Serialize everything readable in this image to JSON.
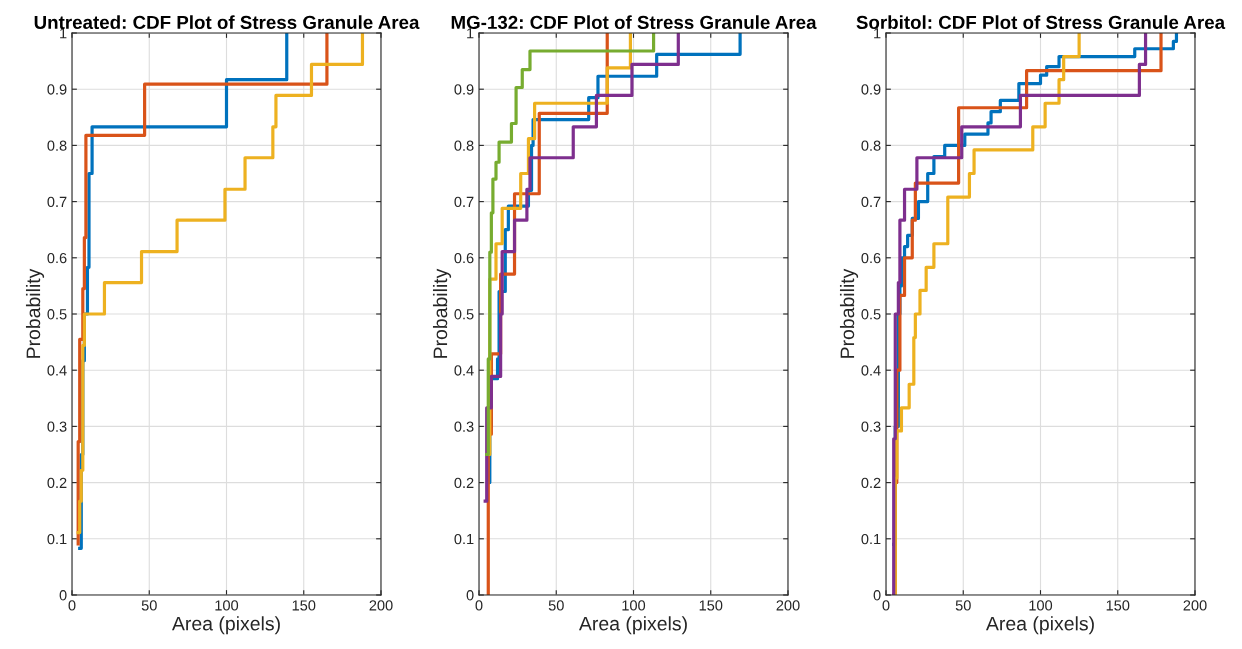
{
  "chart_data": [
    {
      "type": "step",
      "title": "Untreated: CDF Plot of Stress Granule Area",
      "xlabel": "Area (pixels)",
      "ylabel": "Probability",
      "xlim": [
        0,
        200
      ],
      "xticks": [
        0,
        50,
        100,
        150,
        200
      ],
      "ylim": [
        0,
        1
      ],
      "yticks": [
        0,
        0.1,
        0.2,
        0.3,
        0.4,
        0.5,
        0.6,
        0.7,
        0.8,
        0.9,
        1
      ],
      "grid": true,
      "series": [
        {
          "color": "#0072bd",
          "x": [
            5,
            6,
            7,
            8,
            10,
            11,
            13,
            100,
            139
          ],
          "values": [
            0.083,
            0.25,
            0.417,
            0.5,
            0.583,
            0.75,
            0.833,
            0.917,
            1.0
          ]
        },
        {
          "color": "#d95319",
          "x": [
            4,
            4,
            5,
            7,
            8,
            9,
            10,
            47,
            165
          ],
          "values": [
            0.091,
            0.273,
            0.455,
            0.545,
            0.636,
            0.818,
            0.818,
            0.909,
            1.0
          ]
        },
        {
          "color": "#edb120",
          "x": [
            4,
            5,
            6,
            7,
            8,
            10,
            21,
            45,
            68,
            99,
            112,
            130,
            132,
            155,
            188
          ],
          "values": [
            0.111,
            0.167,
            0.222,
            0.444,
            0.5,
            0.5,
            0.556,
            0.611,
            0.667,
            0.722,
            0.778,
            0.833,
            0.889,
            0.944,
            1.0
          ]
        }
      ]
    },
    {
      "type": "step",
      "title": "MG-132: CDF Plot of Stress Granule Area",
      "xlabel": "Area (pixels)",
      "ylabel": "Probability",
      "xlim": [
        0,
        200
      ],
      "xticks": [
        0,
        50,
        100,
        150,
        200
      ],
      "ylim": [
        0,
        1
      ],
      "yticks": [
        0,
        0.1,
        0.2,
        0.3,
        0.4,
        0.5,
        0.6,
        0.7,
        0.8,
        0.9,
        1
      ],
      "grid": true,
      "series": [
        {
          "color": "#0072bd",
          "x": [
            6,
            7,
            8,
            12,
            13,
            17,
            19,
            32,
            34,
            35,
            71,
            77,
            115,
            169
          ],
          "values": [
            0.2,
            0.3,
            0.385,
            0.42,
            0.54,
            0.65,
            0.692,
            0.72,
            0.8,
            0.846,
            0.885,
            0.923,
            0.962,
            1.0
          ]
        },
        {
          "color": "#d95319",
          "x": [
            6,
            6,
            8,
            14,
            23,
            39,
            83
          ],
          "values": [
            0,
            0.286,
            0.429,
            0.571,
            0.714,
            0.857,
            1.0
          ]
        },
        {
          "color": "#edb120",
          "x": [
            6,
            7,
            11,
            15,
            27,
            32,
            36,
            83,
            98
          ],
          "values": [
            0.25,
            0.562,
            0.625,
            0.688,
            0.75,
            0.812,
            0.875,
            0.938,
            1.0
          ]
        },
        {
          "color": "#7e2f8e",
          "x": [
            4,
            5,
            8,
            14,
            15,
            23,
            31,
            33,
            61,
            76,
            99,
            129
          ],
          "values": [
            0.167,
            0.333,
            0.389,
            0.5,
            0.611,
            0.667,
            0.722,
            0.778,
            0.833,
            0.889,
            0.944,
            1.0
          ]
        },
        {
          "color": "#77ac30",
          "x": [
            5,
            6,
            7,
            8,
            9,
            11,
            13,
            21,
            24,
            28,
            33,
            113
          ],
          "values": [
            0.25,
            0.42,
            0.61,
            0.68,
            0.74,
            0.77,
            0.806,
            0.839,
            0.903,
            0.935,
            0.968,
            1.0
          ]
        }
      ]
    },
    {
      "type": "step",
      "title": "Sorbitol: CDF Plot of Stress Granule Area",
      "xlabel": "Area (pixels)",
      "ylabel": "Probability",
      "xlim": [
        0,
        200
      ],
      "xticks": [
        0,
        50,
        100,
        150,
        200
      ],
      "ylim": [
        0,
        1
      ],
      "yticks": [
        0,
        0.1,
        0.2,
        0.3,
        0.4,
        0.5,
        0.6,
        0.7,
        0.8,
        0.9,
        1
      ],
      "grid": true,
      "series": [
        {
          "color": "#0072bd",
          "x": [
            5,
            6,
            8,
            9,
            10,
            12,
            14,
            17,
            21,
            27,
            31,
            38,
            51,
            66,
            68,
            74,
            86,
            100,
            104,
            112,
            161,
            186,
            188
          ],
          "values": [
            0.09,
            0.3,
            0.5,
            0.55,
            0.6,
            0.62,
            0.64,
            0.67,
            0.7,
            0.75,
            0.78,
            0.8,
            0.82,
            0.84,
            0.86,
            0.88,
            0.91,
            0.925,
            0.94,
            0.958,
            0.972,
            0.985,
            1.0
          ]
        },
        {
          "color": "#d95319",
          "x": [
            5,
            6,
            7,
            9,
            12,
            17,
            19,
            47,
            91,
            178
          ],
          "values": [
            0,
            0.2,
            0.4,
            0.533,
            0.6,
            0.667,
            0.733,
            0.867,
            0.933,
            1.0
          ]
        },
        {
          "color": "#edb120",
          "x": [
            5,
            6,
            7,
            10,
            15,
            18,
            19,
            22,
            26,
            31,
            40,
            54,
            57,
            95,
            103,
            112,
            115,
            125
          ],
          "values": [
            0,
            0.208,
            0.292,
            0.333,
            0.375,
            0.458,
            0.5,
            0.542,
            0.583,
            0.625,
            0.708,
            0.75,
            0.792,
            0.833,
            0.875,
            0.917,
            0.958,
            1.0
          ]
        },
        {
          "color": "#7e2f8e",
          "x": [
            5,
            5,
            6,
            8,
            9,
            12,
            20,
            49,
            87,
            164,
            168
          ],
          "values": [
            0,
            0.278,
            0.5,
            0.556,
            0.667,
            0.722,
            0.778,
            0.833,
            0.889,
            0.944,
            1.0
          ]
        }
      ]
    }
  ]
}
